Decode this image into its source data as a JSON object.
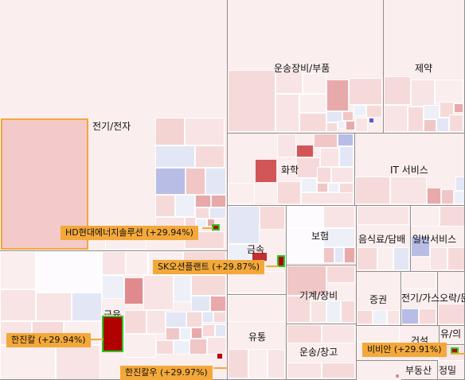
{
  "sectors": [
    {
      "label": "전기/전자"
    },
    {
      "label": "금융"
    },
    {
      "label": "운송장비/부품"
    },
    {
      "label": "제약"
    },
    {
      "label": "화학"
    },
    {
      "label": "IT 서비스"
    },
    {
      "label": "금속"
    },
    {
      "label": "보험"
    },
    {
      "label": "음식료/담배"
    },
    {
      "label": "일반서비스"
    },
    {
      "label": "기계/장비"
    },
    {
      "label": "증권"
    },
    {
      "label": "전기/가스"
    },
    {
      "label": "오락/문화"
    },
    {
      "label": "유통"
    },
    {
      "label": "운송/창고"
    },
    {
      "label": "건설"
    },
    {
      "label": "유/의"
    },
    {
      "label": "부동산"
    },
    {
      "label": "정밀"
    }
  ],
  "highlights": [
    {
      "name": "HD현대에너지솔루션",
      "change": "+29.94%",
      "label": "HD현대에너지솔루션 (+29.94%)"
    },
    {
      "name": "SK오션플랜트",
      "change": "+29.87%",
      "label": "SK오션플랜트 (+29.87%)"
    },
    {
      "name": "한진칼",
      "change": "+29.94%",
      "label": "한진칼 (+29.94%)"
    },
    {
      "name": "한진칼우",
      "change": "+29.97%",
      "label": "한진칼우 (+29.97%)"
    },
    {
      "name": "비비안",
      "change": "+29.91%",
      "label": "비비안 (+29.91%)"
    }
  ],
  "colors": {
    "up_strong": "#b10000",
    "up_mid": "#e8a9ab",
    "up_light": "#f6dada",
    "neutral": "#fbeeee",
    "down_light": "#e3e6f5",
    "down_mid": "#b8bde6",
    "selected_border": "#f3a83a",
    "highlight_border": "#22cc22"
  }
}
